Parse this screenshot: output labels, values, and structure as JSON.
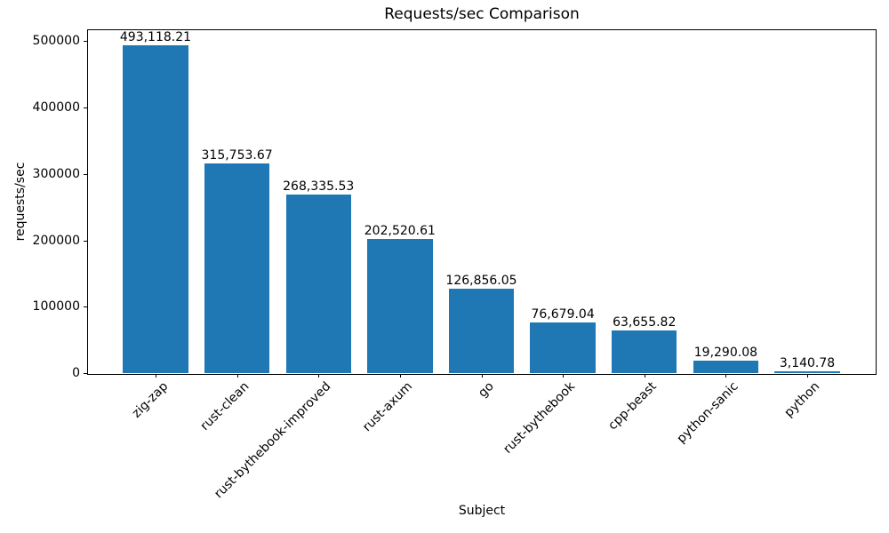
{
  "chart_data": {
    "type": "bar",
    "title": "Requests/sec Comparison",
    "xlabel": "Subject",
    "ylabel": "requests/sec",
    "categories": [
      "zig-zap",
      "rust-clean",
      "rust-bythebook-improved",
      "rust-axum",
      "go",
      "rust-bythebook",
      "cpp-beast",
      "python-sanic",
      "python"
    ],
    "values": [
      493118.21,
      315753.67,
      268335.53,
      202520.61,
      126856.05,
      76679.04,
      63655.82,
      19290.08,
      3140.78
    ],
    "value_labels": [
      "493,118.21",
      "315,753.67",
      "268,335.53",
      "202,520.61",
      "126,856.05",
      "76,679.04",
      "63,655.82",
      "19,290.08",
      "3,140.78"
    ],
    "yticks": [
      0,
      100000,
      200000,
      300000,
      400000,
      500000
    ],
    "ytick_labels": [
      "0",
      "100000",
      "200000",
      "300000",
      "400000",
      "500000"
    ],
    "ylim": [
      0,
      500000
    ],
    "bar_color": "#1f77b4",
    "grid": false,
    "legend": null,
    "xtick_rotation_deg": 45,
    "background_color": "#ffffff"
  }
}
